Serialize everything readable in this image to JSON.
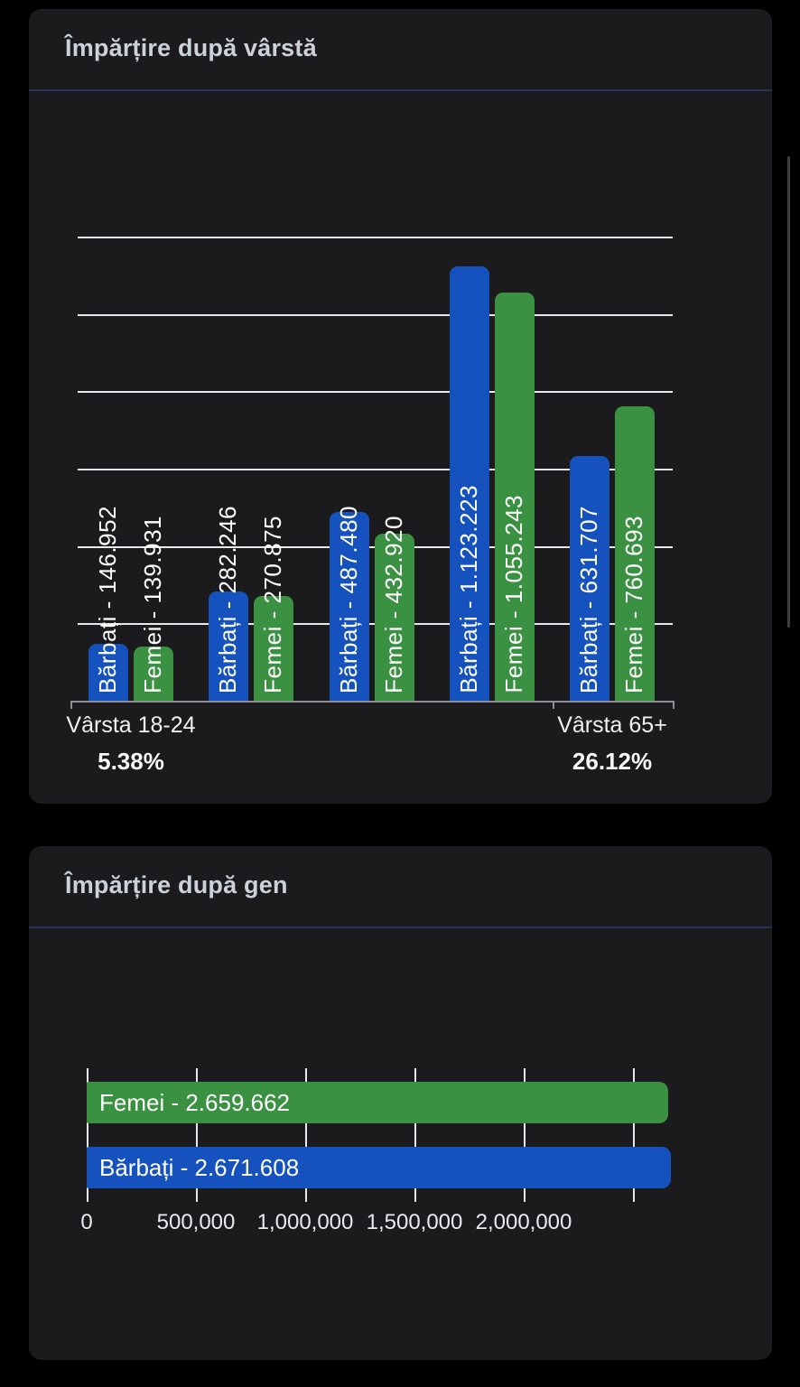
{
  "appearance": {
    "page_bg": "#000000",
    "card_bg": "#1b1b1d",
    "divider_color": "#283459",
    "title_color": "#ccd2d9",
    "grid_color": "#e7e9ec",
    "axis_color": "#8e9093",
    "bar_label_color": "#ffffff",
    "blue": "#1652BE",
    "green": "#3B9142"
  },
  "chart_data": [
    {
      "type": "bar",
      "orientation": "vertical",
      "title": "Împărțire după vârstă",
      "n_groups": 5,
      "series": [
        {
          "name": "Bărbați",
          "color": "#1652BE",
          "values": [
            146952,
            282246,
            487480,
            1123223,
            631707
          ],
          "bar_labels": [
            "Bărbați - 146.952",
            "Bărbați - 282.246",
            "Bărbați - 487.480",
            "Bărbați - 1.123.223",
            "Bărbați - 631.707"
          ]
        },
        {
          "name": "Femei",
          "color": "#3B9142",
          "values": [
            139931,
            270875,
            432920,
            1055243,
            760693
          ],
          "bar_labels": [
            "Femei - 139.931",
            "Femei - 270.875",
            "Femei - 432.920",
            "Femei - 1.055.243",
            "Femei - 760.693"
          ]
        }
      ],
      "ylim": [
        0,
        1200000
      ],
      "grid_step": 200000,
      "grid": "horizontal",
      "x_axis": [
        {
          "label": "Vârsta 18-24",
          "percent": "5.38%",
          "group_index": 0
        },
        {
          "label": "Vârsta 65+",
          "percent": "26.12%",
          "group_index": 4
        }
      ]
    },
    {
      "type": "bar",
      "orientation": "horizontal",
      "title": "Împărțire după gen",
      "bars": [
        {
          "name": "Femei",
          "color": "#3B9142",
          "value": 2659662,
          "label": "Femei - 2.659.662"
        },
        {
          "name": "Bărbați",
          "color": "#1652BE",
          "value": 2671608,
          "label": "Bărbați - 2.671.608"
        }
      ],
      "xlim": [
        0,
        2500000
      ],
      "grid": "vertical",
      "tick_values": [
        0,
        500000,
        1000000,
        1500000,
        2000000,
        2500000
      ],
      "tick_labels": [
        "0",
        "500,000",
        "1,000,000",
        "1,500,000",
        "2,000,000",
        ""
      ]
    }
  ]
}
